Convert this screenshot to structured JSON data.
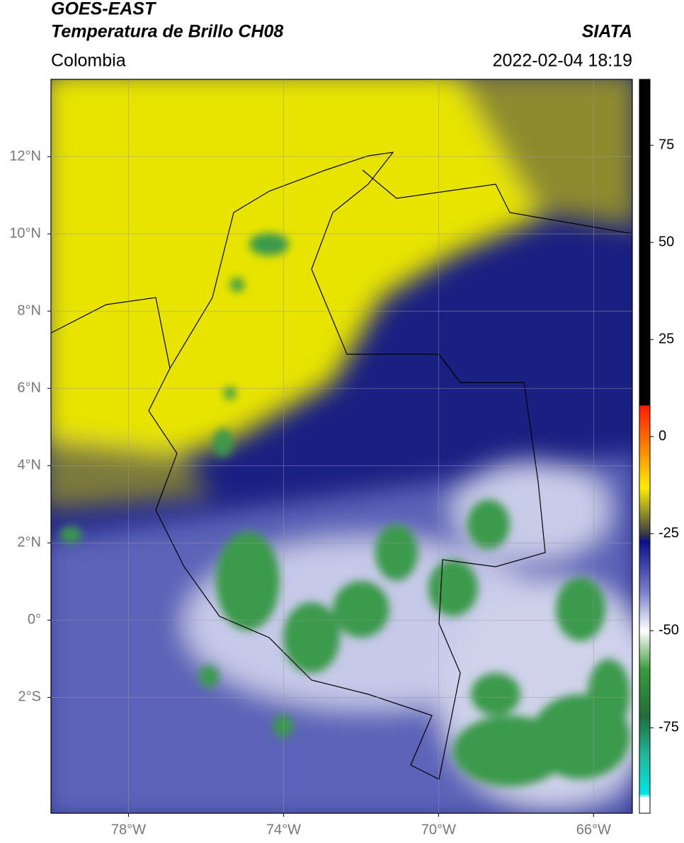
{
  "header": {
    "title": "GOES-EAST",
    "subtitle": "Temperatura de Brillo CH08",
    "source": "SIATA",
    "region": "Colombia",
    "datetime": "2022-02-04 18:19"
  },
  "map": {
    "xlim": [
      -80,
      -65
    ],
    "ylim": [
      -5,
      14
    ],
    "grid": true,
    "xticks": [
      {
        "value": -78,
        "label": "78°W"
      },
      {
        "value": -74,
        "label": "74°W"
      },
      {
        "value": -70,
        "label": "70°W"
      },
      {
        "value": -66,
        "label": "66°W"
      }
    ],
    "yticks": [
      {
        "value": 12,
        "label": "12°N"
      },
      {
        "value": 10,
        "label": "10°N"
      },
      {
        "value": 8,
        "label": "8°N"
      },
      {
        "value": 6,
        "label": "6°N"
      },
      {
        "value": 4,
        "label": "4°N"
      },
      {
        "value": 2,
        "label": "2°N"
      },
      {
        "value": 0,
        "label": "0°"
      },
      {
        "value": -2,
        "label": "2°S"
      }
    ]
  },
  "colorbar": {
    "lim": [
      -97,
      92
    ],
    "ticks": [
      75,
      50,
      25,
      0,
      -25,
      -50,
      -75
    ],
    "colormap": [
      {
        "value": 92,
        "color": "#000000"
      },
      {
        "value": 8,
        "color": "#000000"
      },
      {
        "value": 8,
        "color": "#ff1a00"
      },
      {
        "value": -5,
        "color": "#ff9900"
      },
      {
        "value": -13,
        "color": "#ffee00"
      },
      {
        "value": -20,
        "color": "#8c8a2a"
      },
      {
        "value": -25,
        "color": "#3a3a40"
      },
      {
        "value": -27,
        "color": "#0b0f8a"
      },
      {
        "value": -40,
        "color": "#7a80c8"
      },
      {
        "value": -50,
        "color": "#ffffff"
      },
      {
        "value": -60,
        "color": "#3a9a3a"
      },
      {
        "value": -72,
        "color": "#1f6e3a"
      },
      {
        "value": -82,
        "color": "#20b89a"
      },
      {
        "value": -92,
        "color": "#00e5e5"
      },
      {
        "value": -93,
        "color": "#ffffff"
      },
      {
        "value": -97,
        "color": "#ffffff"
      }
    ]
  }
}
